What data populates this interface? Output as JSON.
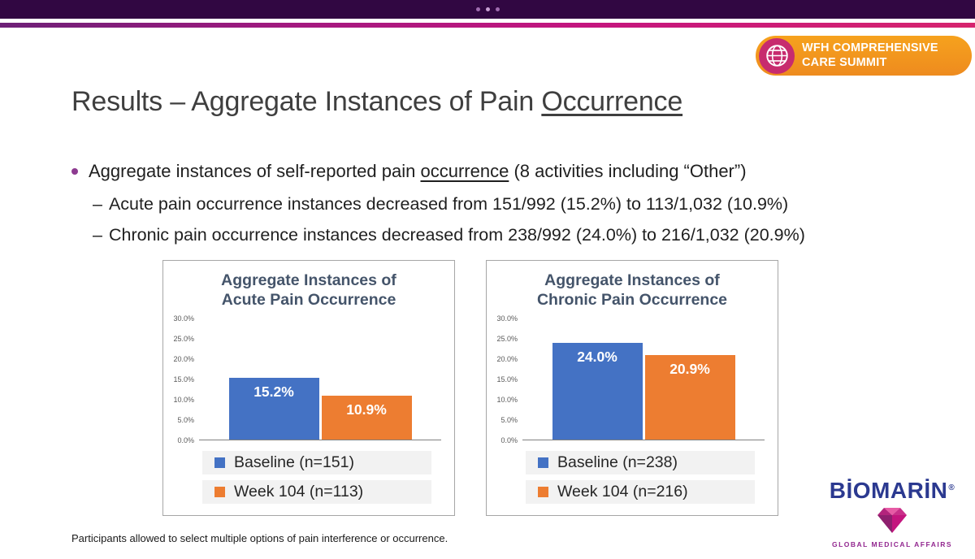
{
  "slide": {
    "title": {
      "prefix": "Results – Aggregate Instances of Pain ",
      "underlined": "Occurrence"
    },
    "bullet": {
      "before": "Aggregate instances of self-reported pain ",
      "underlined": "occurrence",
      "after": " (8 activities including “Other”)"
    },
    "sub_bullets": [
      {
        "marker": "–",
        "text": "Acute pain occurrence instances decreased from 151/992 (15.2%) to 113/1,032 (10.9%)"
      },
      {
        "marker": "–",
        "text": "Chronic pain occurrence instances decreased from 238/992 (24.0%) to 216/1,032 (20.9%)"
      }
    ],
    "footnote": "Participants allowed to select multiple options of pain interference or occurrence."
  },
  "header": {
    "summit_badge": {
      "line1": "WFH COMPREHENSIVE",
      "line2": "CARE SUMMIT",
      "badge_color": "#F2991B",
      "globe_color": "#C72B6E"
    }
  },
  "branding": {
    "wordmark": "BİOMARİN",
    "registered": "®",
    "tagline": "GLOBAL MEDICAL AFFAIRS",
    "wordmark_color": "#2B3990",
    "tagline_color": "#92278F"
  },
  "colors": {
    "bar_blue": "#4472C4",
    "bar_orange": "#ED7D31",
    "top_bar": "#310742",
    "accent_stripe": "#C4157E",
    "chart_title": "#44546A"
  },
  "chart_data": [
    {
      "type": "bar",
      "title": "Aggregate Instances of Acute Pain Occurrence",
      "categories": [
        "Baseline (n=151)",
        "Week 104 (n=113)"
      ],
      "values": [
        15.2,
        10.9
      ],
      "value_labels": [
        "15.2%",
        "10.9%"
      ],
      "series_colors": [
        "#4472C4",
        "#ED7D31"
      ],
      "ylim": [
        0,
        30
      ],
      "ytick_labels": [
        "30.0%",
        "25.0%",
        "20.0%",
        "15.0%",
        "10.0%",
        "5.0%",
        "0.0%"
      ],
      "grid": false,
      "legend_position": "bottom",
      "legend": [
        {
          "label": "Baseline (n=151)",
          "color": "#4472C4"
        },
        {
          "label": "Week 104 (n=113)",
          "color": "#ED7D31"
        }
      ]
    },
    {
      "type": "bar",
      "title": "Aggregate Instances of Chronic Pain Occurrence",
      "categories": [
        "Baseline (n=238)",
        "Week 104 (n=216)"
      ],
      "values": [
        24.0,
        20.9
      ],
      "value_labels": [
        "24.0%",
        "20.9%"
      ],
      "series_colors": [
        "#4472C4",
        "#ED7D31"
      ],
      "ylim": [
        0,
        30
      ],
      "ytick_labels": [
        "30.0%",
        "25.0%",
        "20.0%",
        "15.0%",
        "10.0%",
        "5.0%",
        "0.0%"
      ],
      "grid": false,
      "legend_position": "bottom",
      "legend": [
        {
          "label": "Baseline (n=238)",
          "color": "#4472C4"
        },
        {
          "label": "Week 104 (n=216)",
          "color": "#ED7D31"
        }
      ]
    }
  ]
}
